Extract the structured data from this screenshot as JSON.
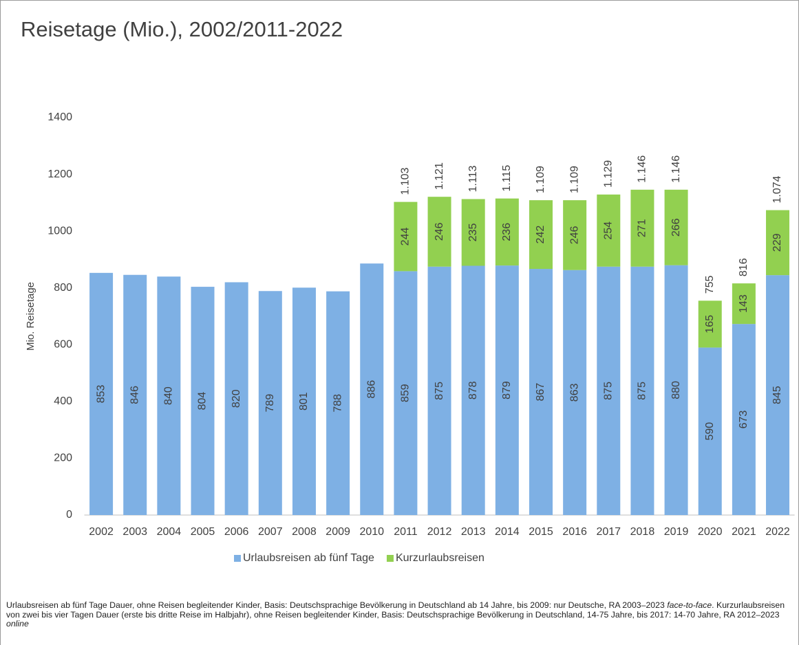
{
  "chart_data": {
    "type": "stacked_bar",
    "title": "Reisetage (Mio.), 2002/2011-2022",
    "y_label": "Mio. Reisetage",
    "categories": [
      "2002",
      "2003",
      "2004",
      "2005",
      "2006",
      "2007",
      "2008",
      "2009",
      "2010",
      "2011",
      "2012",
      "2013",
      "2014",
      "2015",
      "2016",
      "2017",
      "2018",
      "2019",
      "2020",
      "2021",
      "2022"
    ],
    "series": [
      {
        "name": "Urlaubsreisen ab fünf Tage",
        "color": "#7eb0e4",
        "values": [
          853,
          846,
          840,
          804,
          820,
          789,
          801,
          788,
          886,
          859,
          875,
          878,
          879,
          867,
          863,
          875,
          875,
          880,
          590,
          673,
          845
        ]
      },
      {
        "name": "Kurzurlaubsreisen",
        "color": "#92d050",
        "values": [
          null,
          null,
          null,
          null,
          null,
          null,
          null,
          null,
          null,
          244,
          246,
          235,
          236,
          242,
          246,
          254,
          271,
          266,
          165,
          143,
          229
        ]
      }
    ],
    "totals": {
      "values": [
        null,
        null,
        null,
        null,
        null,
        null,
        null,
        null,
        null,
        1103,
        1121,
        1113,
        1115,
        1109,
        1109,
        1129,
        1146,
        1146,
        755,
        816,
        1074
      ],
      "value_labels": [
        null,
        null,
        null,
        null,
        null,
        null,
        null,
        null,
        null,
        "1.103",
        "1.121",
        "1.113",
        "1.115",
        "1.109",
        "1.109",
        "1.129",
        "1.146",
        "1.146",
        "755",
        "816",
        "1.074"
      ]
    },
    "ylim": [
      0,
      1400
    ],
    "yticks": [
      0,
      200,
      400,
      600,
      800,
      1000,
      1200,
      1400
    ],
    "grid": false,
    "legend": "bottom",
    "footnote": [
      {
        "text": "Urlaubsreisen ab fünf Tage Dauer, ohne Reisen begleitender Kinder, Basis: Deutschsprachige Bevölkerung in Deutschland ab 14 Jahre, bis 2009: nur Deutsche, RA 2003–2023 ",
        "italic": false
      },
      {
        "text": "face-to-face",
        "italic": true
      },
      {
        "text": ". Kurzurlaubsreisen von zwei bis vier Tagen Dauer (erste bis dritte Reise im Halbjahr), ohne Reisen begleitender Kinder, Basis: Deutschsprachige Bevölkerung in Deutschland, 14-75 Jahre, bis 2017: 14-70 Jahre, RA 2012–2023 ",
        "italic": false
      },
      {
        "text": "online",
        "italic": true
      }
    ]
  }
}
